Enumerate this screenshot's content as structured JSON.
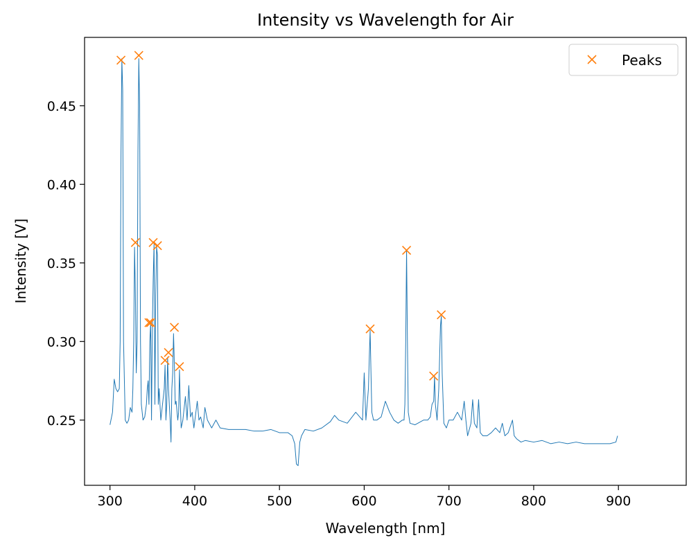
{
  "chart_data": {
    "type": "line",
    "title": "Intensity vs Wavelength for Air",
    "xlabel": "Wavelength [nm]",
    "ylabel": "Intensity [V]",
    "xlim": [
      270,
      980
    ],
    "ylim": [
      0.2085,
      0.4935
    ],
    "xticks": [
      300,
      400,
      500,
      600,
      700,
      800,
      900
    ],
    "yticks": [
      0.25,
      0.3,
      0.35,
      0.4,
      0.45
    ],
    "grid": false,
    "legend": {
      "placement": "upper right",
      "entries": [
        "Peaks"
      ]
    },
    "series": [
      {
        "kind": "line",
        "color": "#1f77b4",
        "x": [
          300,
          303,
          305,
          307,
          309,
          311,
          312,
          313,
          314,
          315,
          316,
          318,
          320,
          322,
          324,
          326,
          327,
          328,
          329,
          330,
          331,
          332,
          333,
          334,
          335,
          336,
          337,
          339,
          341,
          343,
          344,
          345,
          346,
          347,
          348,
          349,
          350,
          351,
          352,
          353,
          354,
          355,
          356,
          357,
          358,
          359,
          360,
          362,
          364,
          365,
          366,
          367,
          368,
          369,
          370,
          371,
          372,
          373,
          374,
          375,
          376,
          377,
          378,
          380,
          381,
          382,
          383,
          384,
          386,
          389,
          391,
          393,
          395,
          397,
          399,
          403,
          405,
          407,
          410,
          412,
          415,
          420,
          425,
          430,
          440,
          450,
          460,
          470,
          480,
          490,
          500,
          510,
          515,
          518,
          520,
          522,
          524,
          526,
          530,
          540,
          550,
          560,
          565,
          570,
          580,
          590,
          598,
          600,
          602,
          605,
          606,
          607,
          608,
          609,
          611,
          615,
          620,
          625,
          630,
          635,
          640,
          645,
          647,
          648,
          649,
          650,
          651,
          652,
          654,
          660,
          670,
          675,
          678,
          680,
          682,
          683,
          684,
          686,
          688,
          690,
          691,
          692,
          694,
          697,
          700,
          705,
          710,
          715,
          718,
          720,
          722,
          726,
          728,
          730,
          733,
          735,
          737,
          740,
          745,
          750,
          755,
          760,
          763,
          766,
          770,
          775,
          777,
          780,
          785,
          790,
          800,
          810,
          820,
          830,
          840,
          850,
          860,
          870,
          880,
          890,
          897,
          899
        ],
        "y": [
          0.247,
          0.255,
          0.276,
          0.27,
          0.268,
          0.27,
          0.3,
          0.42,
          0.48,
          0.46,
          0.3,
          0.25,
          0.248,
          0.25,
          0.258,
          0.255,
          0.27,
          0.3,
          0.36,
          0.33,
          0.28,
          0.3,
          0.42,
          0.48,
          0.45,
          0.3,
          0.26,
          0.25,
          0.252,
          0.26,
          0.27,
          0.275,
          0.26,
          0.3,
          0.312,
          0.25,
          0.31,
          0.34,
          0.362,
          0.26,
          0.33,
          0.36,
          0.355,
          0.26,
          0.27,
          0.26,
          0.25,
          0.26,
          0.27,
          0.285,
          0.25,
          0.26,
          0.29,
          0.27,
          0.26,
          0.25,
          0.236,
          0.27,
          0.28,
          0.305,
          0.285,
          0.26,
          0.262,
          0.25,
          0.255,
          0.282,
          0.26,
          0.245,
          0.25,
          0.265,
          0.25,
          0.272,
          0.252,
          0.255,
          0.245,
          0.262,
          0.25,
          0.252,
          0.245,
          0.258,
          0.25,
          0.245,
          0.25,
          0.245,
          0.244,
          0.244,
          0.244,
          0.243,
          0.243,
          0.244,
          0.242,
          0.242,
          0.24,
          0.235,
          0.222,
          0.221,
          0.236,
          0.24,
          0.244,
          0.243,
          0.245,
          0.249,
          0.253,
          0.25,
          0.248,
          0.255,
          0.25,
          0.28,
          0.25,
          0.27,
          0.29,
          0.307,
          0.28,
          0.255,
          0.25,
          0.25,
          0.252,
          0.262,
          0.255,
          0.25,
          0.248,
          0.25,
          0.25,
          0.26,
          0.3,
          0.358,
          0.3,
          0.255,
          0.248,
          0.247,
          0.25,
          0.25,
          0.252,
          0.26,
          0.262,
          0.278,
          0.26,
          0.25,
          0.27,
          0.31,
          0.316,
          0.28,
          0.248,
          0.245,
          0.25,
          0.25,
          0.255,
          0.25,
          0.262,
          0.25,
          0.24,
          0.248,
          0.263,
          0.248,
          0.245,
          0.263,
          0.242,
          0.24,
          0.24,
          0.242,
          0.245,
          0.242,
          0.248,
          0.24,
          0.242,
          0.25,
          0.24,
          0.238,
          0.236,
          0.237,
          0.236,
          0.237,
          0.235,
          0.236,
          0.235,
          0.236,
          0.235,
          0.235,
          0.235,
          0.235,
          0.236,
          0.24
        ]
      },
      {
        "name": "Peaks",
        "kind": "markers",
        "marker": "x",
        "color": "#ff7f0e",
        "x": [
          313,
          334,
          330,
          351,
          356,
          346,
          348,
          376,
          365,
          369,
          382,
          607,
          650,
          682,
          691
        ],
        "y": [
          0.479,
          0.482,
          0.363,
          0.363,
          0.361,
          0.312,
          0.312,
          0.309,
          0.288,
          0.293,
          0.284,
          0.308,
          0.358,
          0.278,
          0.317
        ]
      }
    ]
  }
}
